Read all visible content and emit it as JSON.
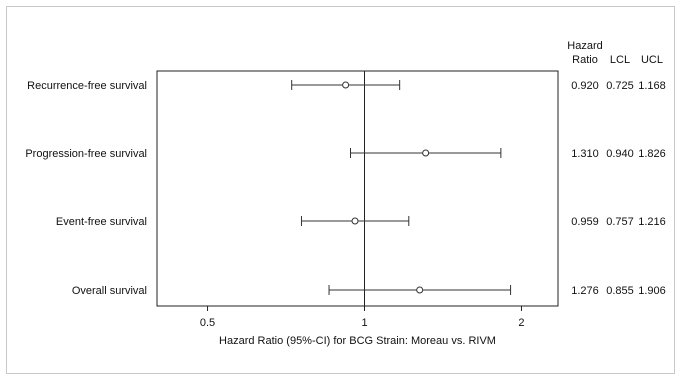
{
  "chart_data": {
    "type": "forest",
    "title": "",
    "xlabel": "Hazard Ratio (95%-CI) for BCG Strain: Moreau vs. RIVM",
    "x_scale": "log",
    "xlim": [
      0.4,
      2.35
    ],
    "x_ticks": [
      0.5,
      1,
      2
    ],
    "x_tick_labels": [
      "0.5",
      "1",
      "2"
    ],
    "reference_line": 1,
    "table_headers": {
      "hr_line1": "Hazard",
      "hr_line2": "Ratio",
      "lcl": "LCL",
      "ucl": "UCL"
    },
    "rows": [
      {
        "label": "Recurrence-free survival",
        "hr": 0.92,
        "lcl": 0.725,
        "ucl": 1.168,
        "hr_text": "0.920",
        "lcl_text": "0.725",
        "ucl_text": "1.168"
      },
      {
        "label": "Progression-free survival",
        "hr": 1.31,
        "lcl": 0.94,
        "ucl": 1.826,
        "hr_text": "1.310",
        "lcl_text": "0.940",
        "ucl_text": "1.826"
      },
      {
        "label": "Event-free survival",
        "hr": 0.959,
        "lcl": 0.757,
        "ucl": 1.216,
        "hr_text": "0.959",
        "lcl_text": "0.757",
        "ucl_text": "1.216"
      },
      {
        "label": "Overall survival",
        "hr": 1.276,
        "lcl": 0.855,
        "ucl": 1.906,
        "hr_text": "1.276",
        "lcl_text": "0.855",
        "ucl_text": "1.906"
      }
    ]
  }
}
